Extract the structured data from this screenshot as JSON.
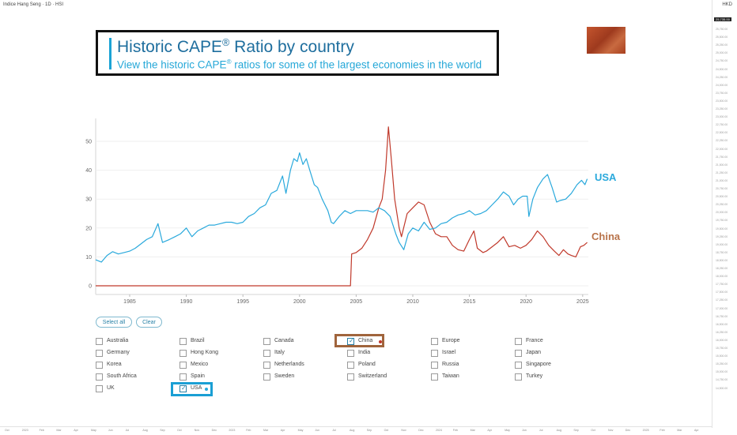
{
  "topbar": {
    "title": "Indice Hang Seng · 1D · HSI",
    "currency": "HKD"
  },
  "header": {
    "title_text": "Historic CAPE",
    "title_sup": "®",
    "title_suffix": " Ratio by country",
    "subtitle_text": "View the historic CAPE",
    "subtitle_sup": "®",
    "subtitle_suffix": " ratios for some of the largest economies in the world"
  },
  "colors": {
    "usa": "#2aa9dc",
    "china": "#c0392b",
    "china_label": "#b8734a",
    "accent": "#1ba3d5",
    "highlight_usa": "#1a9fd4",
    "highlight_china": "#a0643c"
  },
  "chart_data": {
    "type": "line",
    "x_ticks": [
      1985,
      1990,
      1995,
      2000,
      2005,
      2010,
      2015,
      2020,
      2025
    ],
    "y_ticks": [
      0,
      10,
      20,
      30,
      40,
      50
    ],
    "xlim": [
      1982,
      2025.5
    ],
    "ylim": [
      0,
      55
    ],
    "grid": true,
    "series": [
      {
        "name": "USA",
        "color": "#2aa9dc",
        "points": [
          [
            1982.0,
            9.0
          ],
          [
            1982.5,
            8.2
          ],
          [
            1983.0,
            10.5
          ],
          [
            1983.5,
            11.8
          ],
          [
            1984.0,
            11.0
          ],
          [
            1984.5,
            11.5
          ],
          [
            1985.0,
            12.0
          ],
          [
            1985.5,
            13.0
          ],
          [
            1986.0,
            14.5
          ],
          [
            1986.5,
            16.0
          ],
          [
            1987.0,
            17.0
          ],
          [
            1987.5,
            21.5
          ],
          [
            1987.9,
            15.0
          ],
          [
            1988.5,
            16.0
          ],
          [
            1989.0,
            17.0
          ],
          [
            1989.5,
            18.0
          ],
          [
            1990.0,
            20.0
          ],
          [
            1990.5,
            17.0
          ],
          [
            1991.0,
            19.0
          ],
          [
            1991.5,
            20.0
          ],
          [
            1992.0,
            21.0
          ],
          [
            1992.5,
            21.0
          ],
          [
            1993.0,
            21.5
          ],
          [
            1993.5,
            22.0
          ],
          [
            1994.0,
            22.0
          ],
          [
            1994.5,
            21.5
          ],
          [
            1995.0,
            22.0
          ],
          [
            1995.5,
            24.0
          ],
          [
            1996.0,
            25.0
          ],
          [
            1996.5,
            27.0
          ],
          [
            1997.0,
            28.0
          ],
          [
            1997.5,
            32.0
          ],
          [
            1998.0,
            33.0
          ],
          [
            1998.5,
            38.0
          ],
          [
            1998.8,
            32.0
          ],
          [
            1999.2,
            40.0
          ],
          [
            1999.5,
            44.0
          ],
          [
            1999.8,
            43.0
          ],
          [
            2000.0,
            46.0
          ],
          [
            2000.3,
            42.0
          ],
          [
            2000.6,
            44.0
          ],
          [
            2000.9,
            40.0
          ],
          [
            2001.3,
            35.0
          ],
          [
            2001.6,
            34.0
          ],
          [
            2002.0,
            30.0
          ],
          [
            2002.5,
            26.0
          ],
          [
            2002.8,
            22.0
          ],
          [
            2003.0,
            21.5
          ],
          [
            2003.5,
            24.0
          ],
          [
            2004.0,
            26.0
          ],
          [
            2004.5,
            25.0
          ],
          [
            2005.0,
            26.0
          ],
          [
            2005.5,
            26.0
          ],
          [
            2006.0,
            26.0
          ],
          [
            2006.5,
            25.5
          ],
          [
            2007.0,
            27.0
          ],
          [
            2007.5,
            26.0
          ],
          [
            2008.0,
            24.0
          ],
          [
            2008.5,
            18.0
          ],
          [
            2008.8,
            15.0
          ],
          [
            2009.2,
            12.5
          ],
          [
            2009.6,
            18.0
          ],
          [
            2010.0,
            20.0
          ],
          [
            2010.5,
            19.0
          ],
          [
            2011.0,
            22.0
          ],
          [
            2011.5,
            19.5
          ],
          [
            2012.0,
            20.0
          ],
          [
            2012.5,
            21.5
          ],
          [
            2013.0,
            22.0
          ],
          [
            2013.5,
            23.5
          ],
          [
            2014.0,
            24.5
          ],
          [
            2014.5,
            25.0
          ],
          [
            2015.0,
            26.0
          ],
          [
            2015.5,
            24.5
          ],
          [
            2016.0,
            25.0
          ],
          [
            2016.5,
            26.0
          ],
          [
            2017.0,
            28.0
          ],
          [
            2017.5,
            30.0
          ],
          [
            2018.0,
            32.5
          ],
          [
            2018.5,
            31.0
          ],
          [
            2018.9,
            28.0
          ],
          [
            2019.3,
            30.0
          ],
          [
            2019.7,
            31.0
          ],
          [
            2020.1,
            31.0
          ],
          [
            2020.25,
            24.0
          ],
          [
            2020.6,
            30.0
          ],
          [
            2021.0,
            34.0
          ],
          [
            2021.5,
            37.0
          ],
          [
            2021.9,
            38.5
          ],
          [
            2022.3,
            34.0
          ],
          [
            2022.7,
            29.0
          ],
          [
            2023.0,
            29.5
          ],
          [
            2023.5,
            30.0
          ],
          [
            2024.0,
            32.0
          ],
          [
            2024.5,
            35.0
          ],
          [
            2024.9,
            36.5
          ],
          [
            2025.2,
            35.0
          ],
          [
            2025.4,
            37.0
          ]
        ]
      },
      {
        "name": "China",
        "color": "#c0392b",
        "points": [
          [
            1982.0,
            0
          ],
          [
            2004.5,
            0
          ],
          [
            2004.6,
            11.0
          ],
          [
            2005.0,
            11.5
          ],
          [
            2005.5,
            13.0
          ],
          [
            2006.0,
            16.0
          ],
          [
            2006.5,
            20.0
          ],
          [
            2007.0,
            27.0
          ],
          [
            2007.3,
            30.0
          ],
          [
            2007.6,
            40.0
          ],
          [
            2007.85,
            55.0
          ],
          [
            2008.1,
            44.0
          ],
          [
            2008.4,
            30.0
          ],
          [
            2008.8,
            20.0
          ],
          [
            2009.0,
            17.0
          ],
          [
            2009.5,
            25.0
          ],
          [
            2010.0,
            27.0
          ],
          [
            2010.5,
            29.0
          ],
          [
            2011.0,
            28.0
          ],
          [
            2011.5,
            22.0
          ],
          [
            2012.0,
            18.0
          ],
          [
            2012.5,
            17.0
          ],
          [
            2013.0,
            17.0
          ],
          [
            2013.5,
            14.0
          ],
          [
            2014.0,
            12.5
          ],
          [
            2014.5,
            12.0
          ],
          [
            2015.0,
            16.0
          ],
          [
            2015.4,
            19.0
          ],
          [
            2015.7,
            13.0
          ],
          [
            2016.2,
            11.5
          ],
          [
            2016.5,
            12.0
          ],
          [
            2017.0,
            13.5
          ],
          [
            2017.5,
            15.0
          ],
          [
            2018.0,
            17.0
          ],
          [
            2018.5,
            13.5
          ],
          [
            2019.0,
            14.0
          ],
          [
            2019.5,
            13.0
          ],
          [
            2020.0,
            14.0
          ],
          [
            2020.5,
            16.0
          ],
          [
            2021.0,
            19.0
          ],
          [
            2021.5,
            17.0
          ],
          [
            2022.0,
            14.0
          ],
          [
            2022.5,
            12.0
          ],
          [
            2022.9,
            10.5
          ],
          [
            2023.3,
            12.5
          ],
          [
            2023.7,
            11.0
          ],
          [
            2024.0,
            10.5
          ],
          [
            2024.4,
            10.0
          ],
          [
            2024.8,
            13.5
          ],
          [
            2025.1,
            14.0
          ],
          [
            2025.4,
            15.0
          ]
        ]
      }
    ],
    "labels": {
      "usa": "USA",
      "china": "China"
    }
  },
  "controls": {
    "select_all": "Select all",
    "clear": "Clear"
  },
  "countries": [
    {
      "name": "Australia",
      "checked": false
    },
    {
      "name": "Brazil",
      "checked": false
    },
    {
      "name": "Canada",
      "checked": false
    },
    {
      "name": "China",
      "checked": true,
      "dot": "#c0392b"
    },
    {
      "name": "Europe",
      "checked": false
    },
    {
      "name": "France",
      "checked": false
    },
    {
      "name": "Germany",
      "checked": false
    },
    {
      "name": "Hong Kong",
      "checked": false
    },
    {
      "name": "Italy",
      "checked": false
    },
    {
      "name": "India",
      "checked": false
    },
    {
      "name": "Israel",
      "checked": false
    },
    {
      "name": "Japan",
      "checked": false
    },
    {
      "name": "Korea",
      "checked": false
    },
    {
      "name": "Mexico",
      "checked": false
    },
    {
      "name": "Netherlands",
      "checked": false
    },
    {
      "name": "Poland",
      "checked": false
    },
    {
      "name": "Russia",
      "checked": false
    },
    {
      "name": "Singapore",
      "checked": false
    },
    {
      "name": "South Africa",
      "checked": false
    },
    {
      "name": "Spain",
      "checked": false
    },
    {
      "name": "Sweden",
      "checked": false
    },
    {
      "name": "Switzerland",
      "checked": false
    },
    {
      "name": "Taiwan",
      "checked": false
    },
    {
      "name": "Turkey",
      "checked": false
    },
    {
      "name": "UK",
      "checked": false
    },
    {
      "name": "USA",
      "checked": true,
      "dot": "#2aa9dc"
    }
  ],
  "price_scale": [
    "25,750.00",
    "25,500.00",
    "25,250.00",
    "25,000.00",
    "24,750.00",
    "24,500.00",
    "24,250.00",
    "24,000.00",
    "23,750.00",
    "23,500.00",
    "23,250.00",
    "23,000.00",
    "22,750.00",
    "22,500.00",
    "22,250.00",
    "22,000.00",
    "21,750.00",
    "21,500.00",
    "21,250.00",
    "21,000.00",
    "20,750.00",
    "20,500.00",
    "20,250.00",
    "20,000.00",
    "19,750.00",
    "19,500.00",
    "19,250.00",
    "19,000.00",
    "18,750.00",
    "18,500.00",
    "18,250.00",
    "18,000.00",
    "17,750.00",
    "17,500.00",
    "17,250.00",
    "17,000.00",
    "16,750.00",
    "16,500.00",
    "16,250.00",
    "16,000.00",
    "15,750.00",
    "15,500.00",
    "15,250.00",
    "15,000.00",
    "14,750.00",
    "14,500.00"
  ],
  "price_highlight": "25,735.00",
  "time_scale": [
    "Oct",
    "2023",
    "Feb",
    "Mar",
    "Apr",
    "May",
    "Jun",
    "Jul",
    "Aug",
    "Sep",
    "Oct",
    "Nov",
    "Dec",
    "2023",
    "Feb",
    "Mar",
    "Apr",
    "May",
    "Jun",
    "Jul",
    "Aug",
    "Sep",
    "Oct",
    "Nov",
    "Dec",
    "2024",
    "Feb",
    "Mar",
    "Apr",
    "May",
    "Jun",
    "Jul",
    "Aug",
    "Sep",
    "Oct",
    "Nov",
    "Dec",
    "2025",
    "Feb",
    "Mar",
    "Apr"
  ]
}
